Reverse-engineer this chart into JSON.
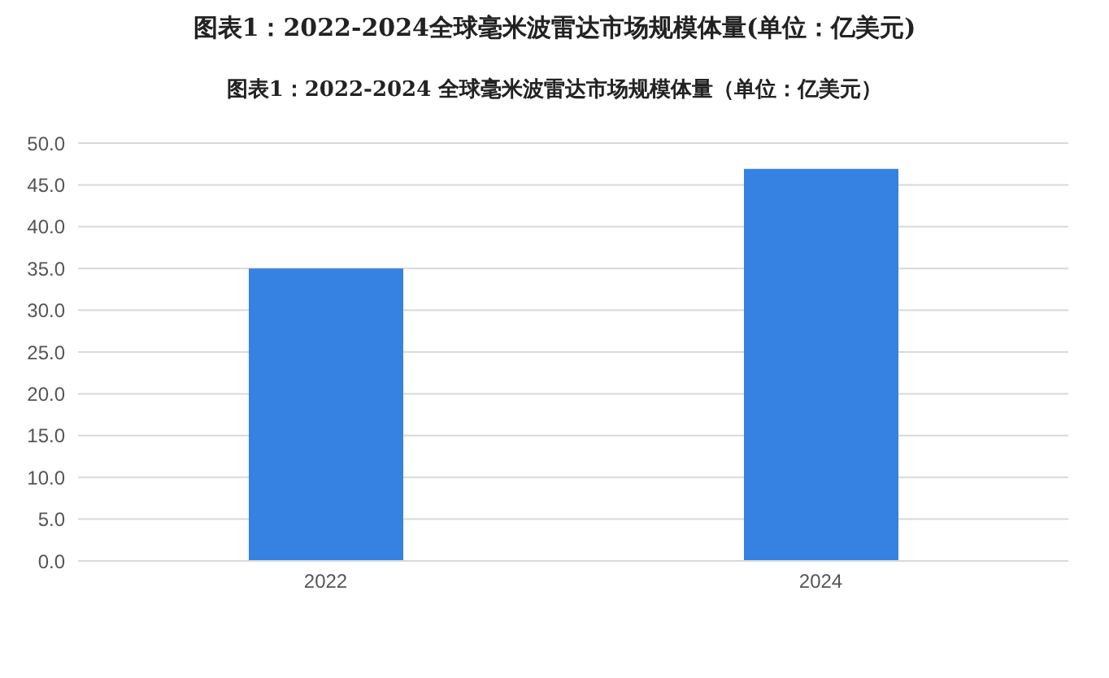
{
  "chart_data": {
    "type": "bar",
    "title": "图表1：2022-2024全球毫米波雷达市场规模体量(单位：亿美元)",
    "subtitle": "图表1：2022-2024 全球毫米波雷达市场规模体量（单位：亿美元）",
    "categories": [
      "2022",
      "2024"
    ],
    "values": [
      35.0,
      46.9
    ],
    "color": "#3582e2",
    "ylim": [
      0,
      50
    ],
    "yticks": [
      {
        "value": 0,
        "label": "0.0"
      },
      {
        "value": 5,
        "label": "5.0"
      },
      {
        "value": 10,
        "label": "10.0"
      },
      {
        "value": 15,
        "label": "15.0"
      },
      {
        "value": 20,
        "label": "20.0"
      },
      {
        "value": 25,
        "label": "25.0"
      },
      {
        "value": 30,
        "label": "30.0"
      },
      {
        "value": 35,
        "label": "35.0"
      },
      {
        "value": 40,
        "label": "40.0"
      },
      {
        "value": 45,
        "label": "45.0"
      },
      {
        "value": 50,
        "label": "50.0"
      }
    ],
    "grid": "y"
  }
}
